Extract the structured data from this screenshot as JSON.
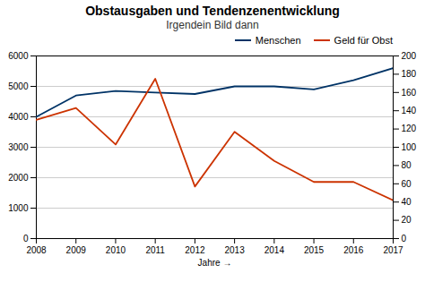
{
  "chart_data": {
    "type": "line",
    "title": "Obstausgaben und Tendenzenentwicklung",
    "subtitle": "Irgendein Bild dann",
    "xlabel": "Jahre",
    "x": [
      2008,
      2009,
      2010,
      2011,
      2012,
      2013,
      2014,
      2015,
      2016,
      2017
    ],
    "series": [
      {
        "name": "Menschen",
        "color": "#003366",
        "values": [
          4000,
          4700,
          4850,
          4800,
          4750,
          5000,
          5000,
          4900,
          5200,
          5600
        ]
      },
      {
        "name": "Geld für Obst",
        "color": "#CC3300",
        "axis": "y2",
        "values": [
          130,
          143,
          103,
          175,
          57,
          117,
          85,
          62,
          62,
          42
        ]
      }
    ],
    "xlim": [
      2008,
      2017
    ],
    "xticks": [
      2008,
      2009,
      2010,
      2011,
      2012,
      2013,
      2014,
      2015,
      2016,
      2017
    ],
    "ylim": [
      0,
      6000
    ],
    "yticks": [
      0,
      1000,
      2000,
      3000,
      4000,
      5000,
      6000
    ],
    "y2lim": [
      0,
      200
    ],
    "y2ticks": [
      0,
      20,
      40,
      60,
      80,
      100,
      120,
      140,
      160,
      180,
      200
    ],
    "grid": true,
    "legend": "upper right"
  }
}
